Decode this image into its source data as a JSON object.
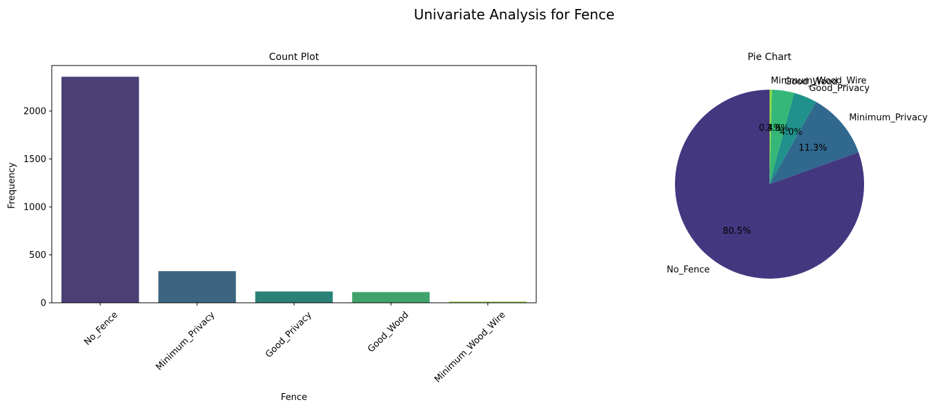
{
  "figure": {
    "suptitle": "Univariate Analysis for Fence"
  },
  "chart_data": [
    {
      "type": "bar",
      "title": "Count Plot",
      "xlabel": "Fence",
      "ylabel": "Frequency",
      "categories": [
        "No_Fence",
        "Minimum_Privacy",
        "Good_Privacy",
        "Good_Wood",
        "Minimum_Wood_Wire"
      ],
      "values": [
        2358,
        330,
        118,
        112,
        12
      ],
      "colors": [
        "#4b3f76",
        "#3c6581",
        "#2a8177",
        "#41a36c",
        "#94c63f"
      ],
      "ylim": [
        0,
        2475
      ],
      "yticks": [
        0,
        500,
        1000,
        1500,
        2000
      ],
      "grid": false,
      "xtick_rotation": 45
    },
    {
      "type": "pie",
      "title": "Pie Chart",
      "labels": [
        "No_Fence",
        "Minimum_Privacy",
        "Good_Privacy",
        "Good_Wood",
        "Minimum_Wood_Wire"
      ],
      "values": [
        80.5,
        11.3,
        4.0,
        3.8,
        0.4
      ],
      "pct_labels": [
        "80.5%",
        "11.3%",
        "4.0%",
        "3.8%",
        "0.4%"
      ],
      "colors": [
        "#433880",
        "#31688e",
        "#21918c",
        "#35b779",
        "#90d743"
      ],
      "startangle": 90,
      "direction": "counterclockwise"
    }
  ]
}
